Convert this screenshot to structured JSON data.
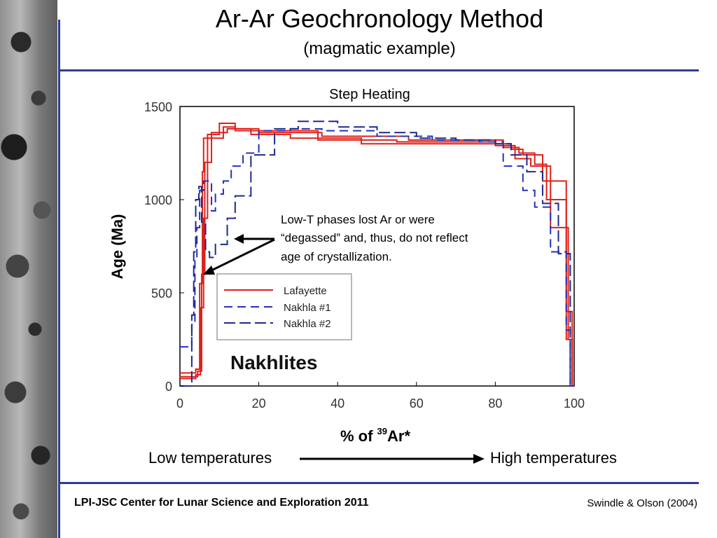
{
  "slide": {
    "title": "Ar-Ar Geochronology Method",
    "subtitle": "(magmatic example)",
    "footer_left": "LPI-JSC Center for Lunar Science and Exploration 2011",
    "footer_right": "Swindle & Olson (2004)",
    "low_temp_label": "Low temperatures",
    "high_temp_label": "High temperatures",
    "accent_color": "#2e3d94"
  },
  "chart_data": {
    "type": "line",
    "step": true,
    "title": "Step Heating",
    "xlabel": "% of 39Ar*",
    "xlabel_parts": {
      "prefix": "% of ",
      "superscript": "39",
      "suffix": "Ar*"
    },
    "ylabel": "Age (Ma)",
    "xlim": [
      0,
      100
    ],
    "ylim": [
      0,
      1500
    ],
    "xticks": [
      0,
      20,
      40,
      60,
      80,
      100
    ],
    "yticks": [
      0,
      500,
      1000,
      1500
    ],
    "grid": false,
    "legend_position": "middle-left",
    "watermark": "Nakhlites",
    "annotation": {
      "lines": [
        "Low-T phases lost Ar or were",
        "“degassed” and, thus, do not reflect",
        "age of crystallization."
      ]
    },
    "series": [
      {
        "name": "Lafayette",
        "color": "#e0201a",
        "dash": "solid",
        "steps": [
          {
            "x": [
              0,
              4,
              5,
              5.7,
              6,
              11,
              14,
              20,
              35,
              55,
              80,
              84,
              87,
              92,
              98,
              99.5
            ],
            "y": [
              70,
              90,
              550,
              1150,
              1330,
              1390,
              1370,
              1370,
              1320,
              1310,
              1300,
              1270,
              1240,
              1100,
              250,
              0
            ]
          },
          {
            "x": [
              0,
              4,
              5.2,
              6,
              7,
              10,
              14,
              20,
              36,
              58,
              82,
              86,
              90,
              93,
              98,
              99.5
            ],
            "y": [
              40,
              60,
              420,
              900,
              1350,
              1410,
              1380,
              1360,
              1340,
              1320,
              1280,
              1250,
              1190,
              1000,
              400,
              0
            ]
          },
          {
            "x": [
              0,
              4.5,
              5.5,
              6.3,
              8,
              12,
              18,
              28,
              46,
              66,
              80,
              85,
              89,
              94,
              98.5,
              99.5
            ],
            "y": [
              50,
              80,
              600,
              1200,
              1360,
              1380,
              1350,
              1330,
              1300,
              1300,
              1290,
              1220,
              1180,
              850,
              250,
              0
            ]
          }
        ]
      },
      {
        "name": "Nakhla #1",
        "color": "#2531b8",
        "dash": "12,7",
        "steps": [
          {
            "x": [
              0,
              3,
              3.8,
              4.3,
              5,
              6,
              8,
              9,
              11,
              13,
              16,
              20,
              28,
              36,
              50,
              64,
              76,
              82,
              87,
              90,
              94,
              98,
              99,
              100
            ],
            "y": [
              210,
              330,
              680,
              850,
              1050,
              1100,
              940,
              1030,
              1100,
              1180,
              1250,
              1370,
              1380,
              1370,
              1340,
              1320,
              1310,
              1180,
              1050,
              960,
              720,
              300,
              0,
              0
            ]
          }
        ]
      },
      {
        "name": "Nakhla #2",
        "color": "#1d2a8c",
        "dash": "16,6",
        "steps": [
          {
            "x": [
              0,
              3,
              3.5,
              4,
              4.8,
              5.5,
              6.5,
              7.5,
              9,
              12,
              14,
              18,
              24,
              30,
              40,
              50,
              60,
              70,
              80,
              84,
              88,
              92,
              96,
              99,
              100
            ],
            "y": [
              0,
              380,
              720,
              1000,
              1070,
              880,
              720,
              690,
              760,
              900,
              1020,
              1240,
              1380,
              1420,
              1390,
              1360,
              1330,
              1320,
              1300,
              1240,
              1150,
              980,
              710,
              0,
              0
            ]
          }
        ]
      }
    ]
  }
}
